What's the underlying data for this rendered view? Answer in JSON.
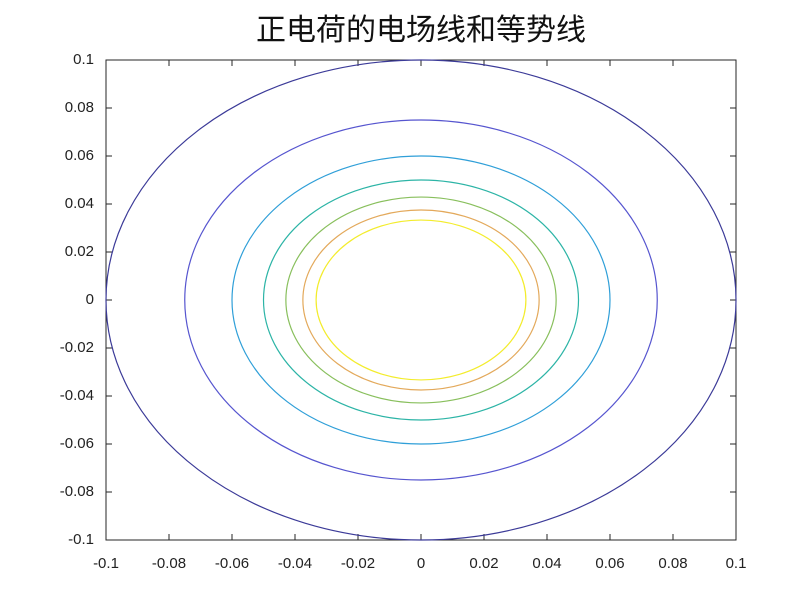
{
  "chart_data": {
    "type": "contour",
    "title": "正电荷的电场线和等势线",
    "values": [
      0.1,
      0.075,
      0.06,
      0.05,
      0.0429,
      0.0375,
      0.0333
    ],
    "colors": [
      "#3b3a98",
      "#5655cf",
      "#2f9fd8",
      "#2cb4a6",
      "#88bf5c",
      "#e3a95b",
      "#f3ec2c"
    ],
    "xlim": [
      -0.1,
      0.1
    ],
    "ylim": [
      -0.1,
      0.1
    ],
    "xticks": [
      -0.1,
      -0.08,
      -0.06,
      -0.04,
      -0.02,
      0,
      0.02,
      0.04,
      0.06,
      0.08,
      0.1
    ],
    "yticks": [
      -0.1,
      -0.08,
      -0.06,
      -0.04,
      -0.02,
      0,
      0.02,
      0.04,
      0.06,
      0.08,
      0.1
    ]
  }
}
